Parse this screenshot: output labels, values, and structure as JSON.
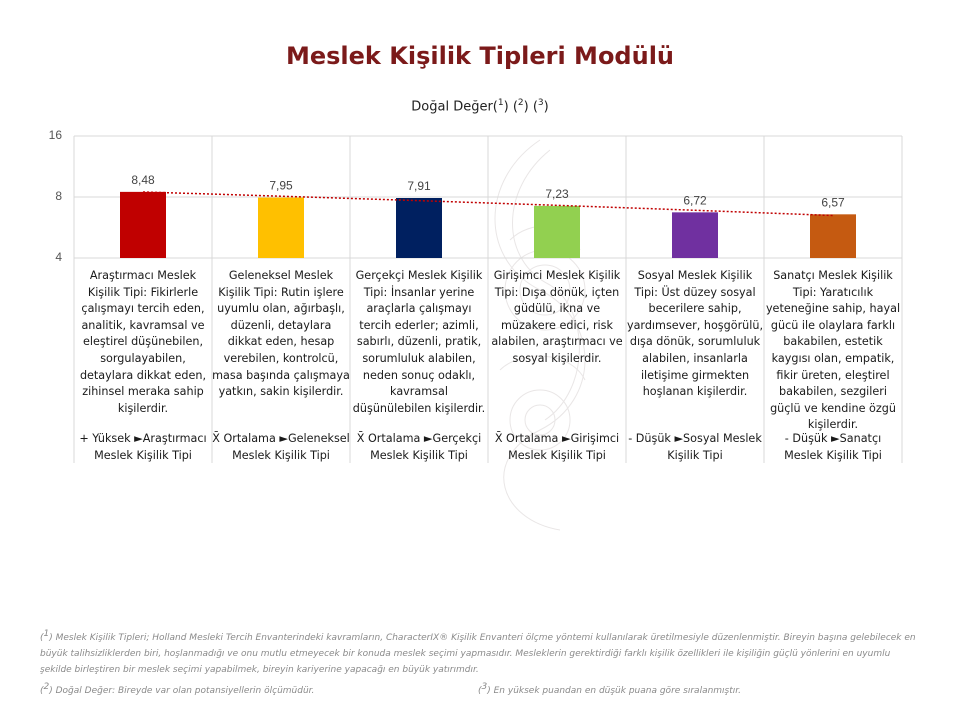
{
  "page": {
    "title": "Meslek Kişilik Tipleri Modülü",
    "subtitle_prefix": "Doğal Değer(",
    "subtitle_sup1": "1",
    "subtitle_mid1": ") (",
    "subtitle_sup2": "2",
    "subtitle_mid2": ") (",
    "subtitle_sup3": "3",
    "subtitle_suffix": ")"
  },
  "chart_data": {
    "type": "bar",
    "title": "Doğal Değer(1) (2) (3)",
    "categories": [
      "Araştırmacı Meslek Kişilik Tipi",
      "Geleneksel Meslek Kişilik Tipi",
      "Gerçekçi Meslek Kişilik Tipi",
      "Girişimci Meslek Kişilik Tipi",
      "Sosyal Meslek Kişilik Tipi",
      "Sanatçı Meslek Kişilik Tipi"
    ],
    "values": [
      8.48,
      7.95,
      7.91,
      7.23,
      6.72,
      6.57
    ],
    "value_labels": [
      "8,48",
      "7,95",
      "7,91",
      "7,23",
      "6,72",
      "6,57"
    ],
    "colors": [
      "#c00000",
      "#ffc000",
      "#002060",
      "#92d050",
      "#7030a0",
      "#c55a11"
    ],
    "y_ticks": [
      16,
      8,
      4
    ],
    "y_scale": "log",
    "ylim": [
      4,
      16
    ],
    "trendline": "dotted-linear",
    "trendline_color": "#c00000",
    "grid": true,
    "descriptions": [
      "Araştırmacı Meslek Kişilik Tipi: Fikirlerle çalışmayı tercih eden, analitik, kavramsal ve eleştirel düşünebilen, sorgulayabilen, detaylara dikkat eden, zihinsel meraka sahip kişilerdir.",
      "Geleneksel Meslek Kişilik Tipi: Rutin işlere uyumlu olan, ağırbaşlı, düzenli, detaylara dikkat eden, hesap verebilen, kontrolcü, masa başında çalışmaya yatkın, sakin kişilerdir.",
      "Gerçekçi Meslek Kişilik Tipi: İnsanlar yerine araçlarla çalışmayı tercih ederler; azimli, sabırlı, düzenli, pratik, sorumluluk alabilen, neden sonuç odaklı, kavramsal düşünülebilen kişilerdir.",
      "Girişimci Meslek Kişilik Tipi: Dışa dönük, içten güdülü, ikna ve müzakere edici, risk alabilen, araştırmacı ve sosyal kişilerdir.",
      "Sosyal Meslek Kişilik Tipi: Üst düzey sosyal becerilere sahip, yardımsever, hoşgörülü, dışa dönük, sorumluluk alabilen, insanlarla iletişime girmekten hoşlanan kişilerdir.",
      "Sanatçı Meslek Kişilik Tipi: Yaratıcılık yeteneğine sahip, hayal gücü ile olaylara farklı bakabilen, estetik kaygısı olan, empatik, fikir üreten, eleştirel bakabilen, sezgileri güçlü ve kendine özgü kişilerdir."
    ],
    "ranks": [
      "+ Yüksek ►Araştırmacı Meslek Kişilik Tipi",
      "X̄ Ortalama ►Geleneksel Meslek Kişilik Tipi",
      "X̄ Ortalama ►Gerçekçi Meslek Kişilik Tipi",
      "X̄ Ortalama ►Girişimci Meslek Kişilik Tipi",
      "- Düşük ►Sosyal Meslek Kişilik Tipi",
      "- Düşük ►Sanatçı Meslek Kişilik Tipi"
    ]
  },
  "footnotes": {
    "note1_mark": "1",
    "note1_text": "Meslek Kişilik Tipleri; Holland Mesleki Tercih Envanterindeki kavramların, CharacterIX® Kişilik Envanteri ölçme yöntemi kullanılarak üretilmesiyle düzenlenmiştir. Bireyin başına gelebilecek en büyük talihsizliklerden biri, hoşlanmadığı ve onu mutlu etmeyecek bir konuda meslek seçimi yapmasıdır. Mesleklerin gerektirdiği farklı kişilik özellikleri ile kişiliğin güçlü yönlerini en uyumlu şekilde birleştiren bir meslek seçimi yapabilmek, bireyin kariyerine yapacağı en büyük yatırımdır.",
    "note2_mark": "2",
    "note2_text": "Doğal Değer: Bireyde var olan potansiyellerin ölçümüdür.",
    "note3_mark": "3",
    "note3_text": "En yüksek puandan en düşük puana göre sıralanmıştır."
  }
}
